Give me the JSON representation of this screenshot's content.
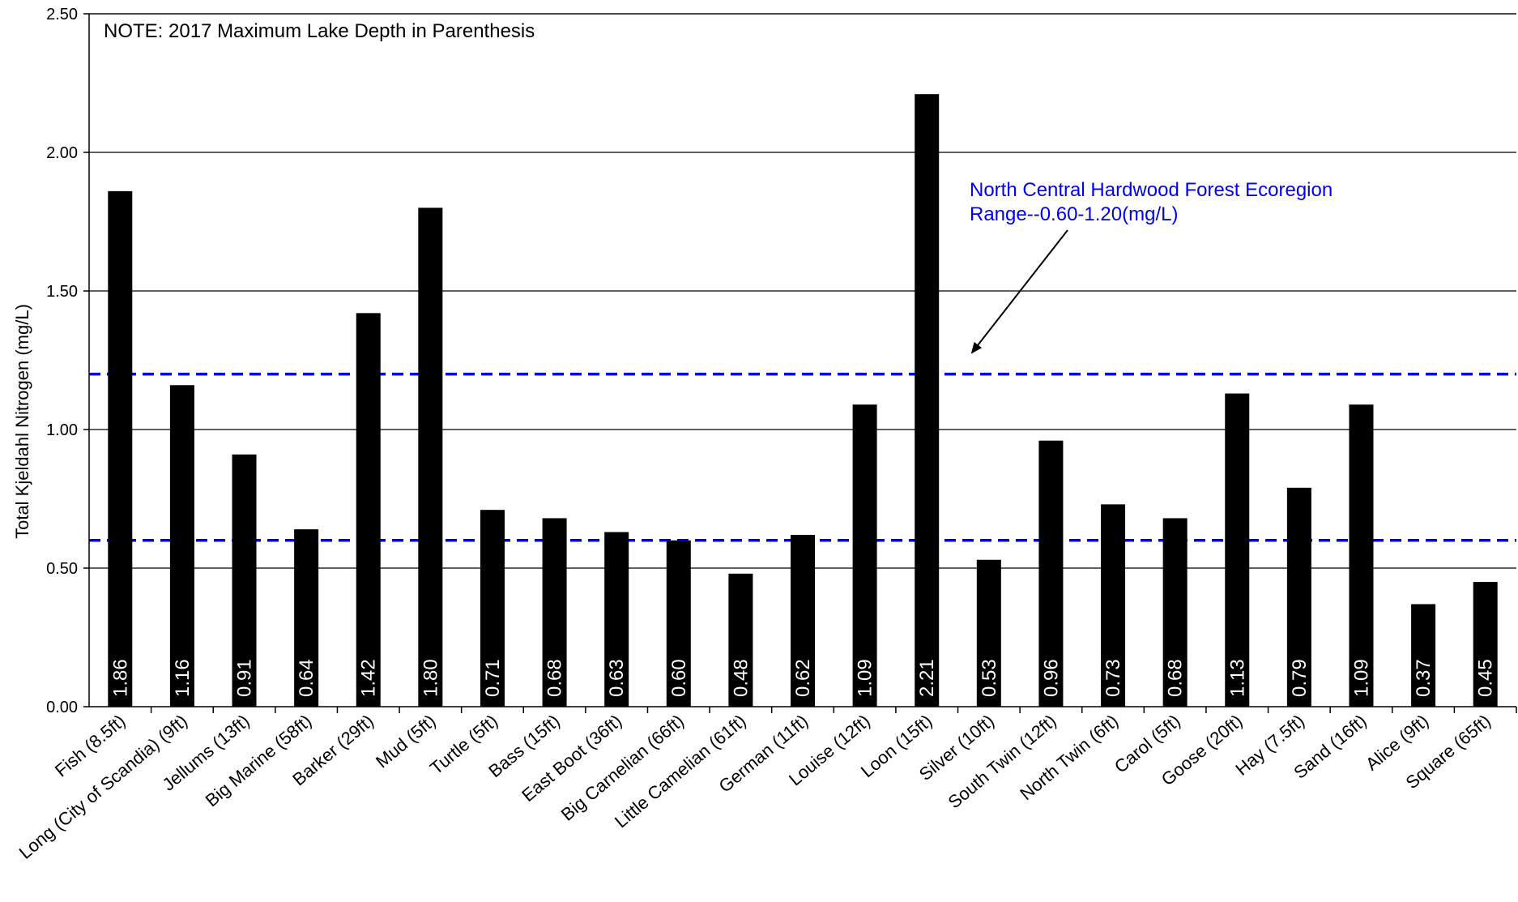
{
  "chart_data": {
    "type": "bar",
    "ylabel": "Total Kjeldahl Nitrogen (mg/L)",
    "ylim": [
      0,
      2.5
    ],
    "yticks": [
      "0.00",
      "0.50",
      "1.00",
      "1.50",
      "2.00",
      "2.50"
    ],
    "grid": true,
    "note": "NOTE: 2017 Maximum  Lake Depth in Parenthesis",
    "categories": [
      "Fish (8.5ft)",
      "Long (City of Scandia) (9ft)",
      "Jellums (13ft)",
      "Big Marine (58ft)",
      "Barker (29ft)",
      "Mud (5ft)",
      "Turtle (5ft)",
      "Bass (15ft)",
      "East Boot (36ft)",
      "Big Carnelian (66ft)",
      "Little Camelian (61ft)",
      "German (11ft)",
      "Louise (12ft)",
      "Loon (15ft)",
      "Silver (10ft)",
      "South Twin (12ft)",
      "North Twin (6ft)",
      "Carol (5ft)",
      "Goose (20ft)",
      "Hay (7.5ft)",
      "Sand (16ft)",
      "Alice (9ft)",
      "Square (65ft)"
    ],
    "values": [
      1.86,
      1.16,
      0.91,
      0.64,
      1.42,
      1.8,
      0.71,
      0.68,
      0.63,
      0.6,
      0.48,
      0.62,
      1.09,
      2.21,
      0.53,
      0.96,
      0.73,
      0.68,
      1.13,
      0.79,
      1.09,
      0.37,
      0.45
    ],
    "value_labels": [
      "1.86",
      "1.16",
      "0.91",
      "0.64",
      "1.42",
      "1.80",
      "0.71",
      "0.68",
      "0.63",
      "0.60",
      "0.48",
      "0.62",
      "1.09",
      "2.21",
      "0.53",
      "0.96",
      "0.73",
      "0.68",
      "1.13",
      "0.79",
      "1.09",
      "0.37",
      "0.45"
    ],
    "bar_color": "#000000",
    "reference_range": {
      "low": 0.6,
      "high": 1.2,
      "color": "#0000ee",
      "label_line1": "North Central Hardwood Forest Ecoregion",
      "label_line2": "Range--0.60-1.20(mg/L)"
    }
  }
}
